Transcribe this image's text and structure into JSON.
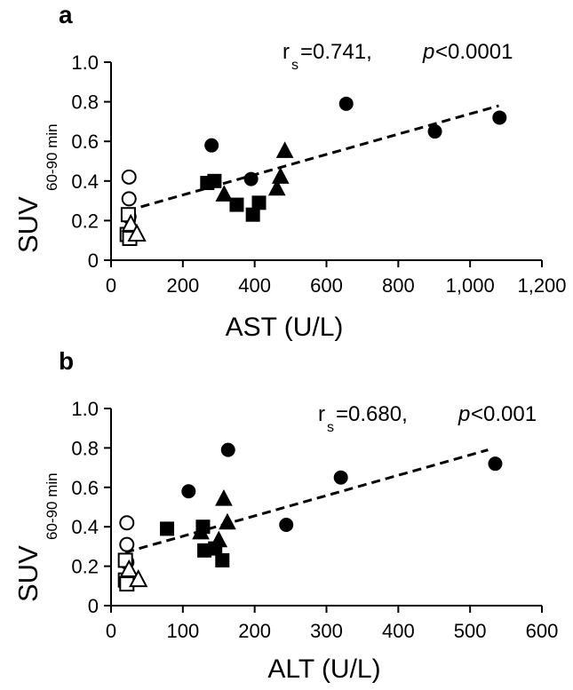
{
  "chart_data": [
    {
      "panel": "a",
      "type": "scatter",
      "xlabel": "AST (U/L)",
      "ylabel": "SUV",
      "ylabel_sub": "60-90 min",
      "stat": "=0.741, ",
      "stat_symbol": "r",
      "stat_sub": "s",
      "p_symbol": "p",
      "p_value": "<0.0001",
      "xlim": [
        0,
        1200
      ],
      "ylim": [
        0,
        1.0
      ],
      "xticks": [
        0,
        200,
        400,
        600,
        800,
        1000,
        1200
      ],
      "xtick_labels": [
        "0",
        "200",
        "400",
        "600",
        "800",
        "1,000",
        "1,200"
      ],
      "yticks": [
        0,
        0.2,
        0.4,
        0.6,
        0.8,
        1.0
      ],
      "ytick_labels": [
        "0",
        "0.2",
        "0.4",
        "0.6",
        "0.8",
        "1.0"
      ],
      "fit_line": {
        "x": [
          45,
          1080
        ],
        "y": [
          0.25,
          0.78
        ]
      },
      "series": [
        {
          "name": "open-circle",
          "marker": "circle",
          "filled": false,
          "points": [
            [
              50,
              0.42
            ],
            [
              50,
              0.31
            ],
            [
              50,
              0.22
            ]
          ]
        },
        {
          "name": "open-square",
          "marker": "square",
          "filled": false,
          "points": [
            [
              48,
              0.23
            ],
            [
              45,
              0.13
            ],
            [
              52,
              0.11
            ]
          ]
        },
        {
          "name": "open-triangle",
          "marker": "triangle",
          "filled": false,
          "points": [
            [
              55,
              0.18
            ],
            [
              72,
              0.13
            ]
          ]
        },
        {
          "name": "filled-circle",
          "marker": "circle",
          "filled": true,
          "points": [
            [
              280,
              0.58
            ],
            [
              390,
              0.41
            ],
            [
              655,
              0.79
            ],
            [
              902,
              0.65
            ],
            [
              1082,
              0.72
            ]
          ]
        },
        {
          "name": "filled-square",
          "marker": "square",
          "filled": true,
          "points": [
            [
              268,
              0.39
            ],
            [
              288,
              0.4
            ],
            [
              350,
              0.28
            ],
            [
              395,
              0.23
            ],
            [
              412,
              0.29
            ]
          ]
        },
        {
          "name": "filled-triangle",
          "marker": "triangle",
          "filled": true,
          "points": [
            [
              315,
              0.33
            ],
            [
              462,
              0.36
            ],
            [
              472,
              0.42
            ],
            [
              484,
              0.55
            ]
          ]
        }
      ]
    },
    {
      "panel": "b",
      "type": "scatter",
      "xlabel": "ALT (U/L)",
      "ylabel": "SUV",
      "ylabel_sub": "60-90 min",
      "stat": "=0.680, ",
      "stat_symbol": "r",
      "stat_sub": "s",
      "p_symbol": "p",
      "p_value": "<0.001",
      "xlim": [
        0,
        600
      ],
      "ylim": [
        0,
        1.0
      ],
      "xticks": [
        0,
        100,
        200,
        300,
        400,
        500,
        600
      ],
      "xtick_labels": [
        "0",
        "100",
        "200",
        "300",
        "400",
        "500",
        "600"
      ],
      "yticks": [
        0,
        0.2,
        0.4,
        0.6,
        0.8,
        1.0
      ],
      "ytick_labels": [
        "0",
        "0.2",
        "0.4",
        "0.6",
        "0.8",
        "1.0"
      ],
      "fit_line": {
        "x": [
          20,
          525
        ],
        "y": [
          0.27,
          0.79
        ]
      },
      "series": [
        {
          "name": "open-circle",
          "marker": "circle",
          "filled": false,
          "points": [
            [
              22,
              0.42
            ],
            [
              22,
              0.31
            ],
            [
              22,
              0.22
            ]
          ]
        },
        {
          "name": "open-square",
          "marker": "square",
          "filled": false,
          "points": [
            [
              20,
              0.23
            ],
            [
              20,
              0.13
            ],
            [
              22,
              0.11
            ]
          ]
        },
        {
          "name": "open-triangle",
          "marker": "triangle",
          "filled": false,
          "points": [
            [
              25,
              0.18
            ],
            [
              38,
              0.13
            ]
          ]
        },
        {
          "name": "filled-circle",
          "marker": "circle",
          "filled": true,
          "points": [
            [
              108,
              0.58
            ],
            [
              163,
              0.79
            ],
            [
              244,
              0.41
            ],
            [
              320,
              0.65
            ],
            [
              535,
              0.72
            ]
          ]
        },
        {
          "name": "filled-square",
          "marker": "square",
          "filled": true,
          "points": [
            [
              78,
              0.39
            ],
            [
              128,
              0.4
            ],
            [
              130,
              0.28
            ],
            [
              145,
              0.29
            ],
            [
              155,
              0.23
            ]
          ]
        },
        {
          "name": "filled-triangle",
          "marker": "triangle",
          "filled": true,
          "points": [
            [
              125,
              0.37
            ],
            [
              150,
              0.33
            ],
            [
              157,
              0.54
            ],
            [
              162,
              0.42
            ]
          ]
        }
      ]
    }
  ]
}
